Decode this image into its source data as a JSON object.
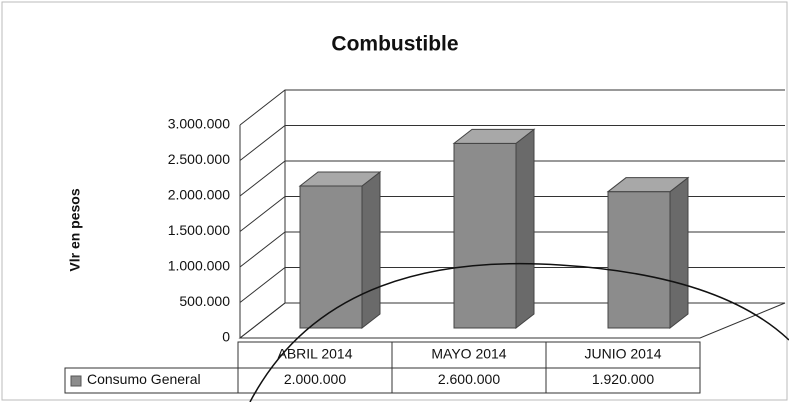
{
  "chart_data": {
    "type": "bar3d",
    "title": "Combustible",
    "y_label": "Vlr en pesos",
    "categories": [
      "ABRIL 2014",
      "MAYO 2014",
      "JUNIO 2014"
    ],
    "series": [
      {
        "name": "Consumo General",
        "color": "#8c8c8c",
        "values": [
          2000000,
          2600000,
          1920000
        ],
        "value_labels": [
          "2.000.000",
          "2.600.000",
          "1.920.000"
        ]
      }
    ],
    "ylim": [
      0,
      3000000
    ],
    "yticks": [
      0,
      {
        "value": 500000,
        "label": "500.000"
      },
      {
        "value": 1000000,
        "label": "1.000.000"
      },
      {
        "value": 1500000,
        "label": "1.500.000"
      },
      {
        "value": 2000000,
        "label": "2.000.000"
      },
      {
        "value": 2500000,
        "label": "2.500.000"
      },
      {
        "value": 3000000,
        "label": "3.000.000"
      }
    ],
    "grid": true,
    "legend": "table"
  }
}
